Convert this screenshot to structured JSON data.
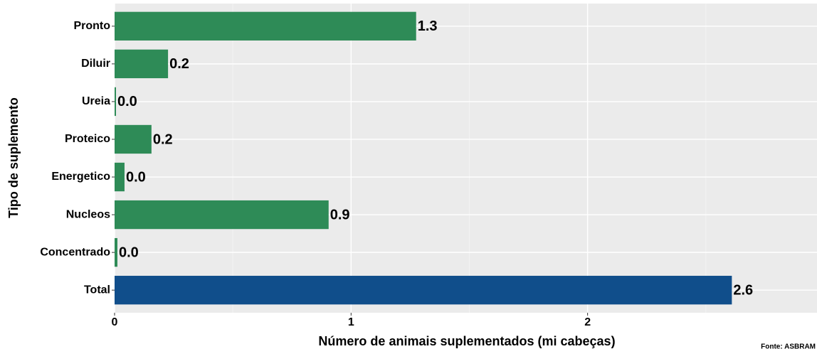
{
  "chart_data": {
    "type": "barh",
    "categories": [
      "Pronto",
      "Diluir",
      "Ureia",
      "Proteico",
      "Energetico",
      "Nucleos",
      "Concentrado",
      "Total"
    ],
    "values": [
      1.275,
      0.226,
      0.006,
      0.156,
      0.042,
      0.905,
      0.012,
      2.61
    ],
    "value_labels": [
      "1.3",
      "0.2",
      "0.0",
      "0.2",
      "0.0",
      "0.9",
      "0.0",
      "2.6"
    ],
    "colors": [
      "#2e8b57",
      "#2e8b57",
      "#2e8b57",
      "#2e8b57",
      "#2e8b57",
      "#2e8b57",
      "#2e8b57",
      "#104e8b"
    ],
    "xlim": [
      0,
      2.97
    ],
    "xticks": [
      0,
      1,
      2
    ],
    "minor_xticks": [
      0.5,
      1.5,
      2.5
    ],
    "grid": true,
    "xlabel": "Número de animais suplementados (mi cabeças)",
    "ylabel": "Tipo de suplemento",
    "caption": "Fonte: ASBRAM"
  }
}
